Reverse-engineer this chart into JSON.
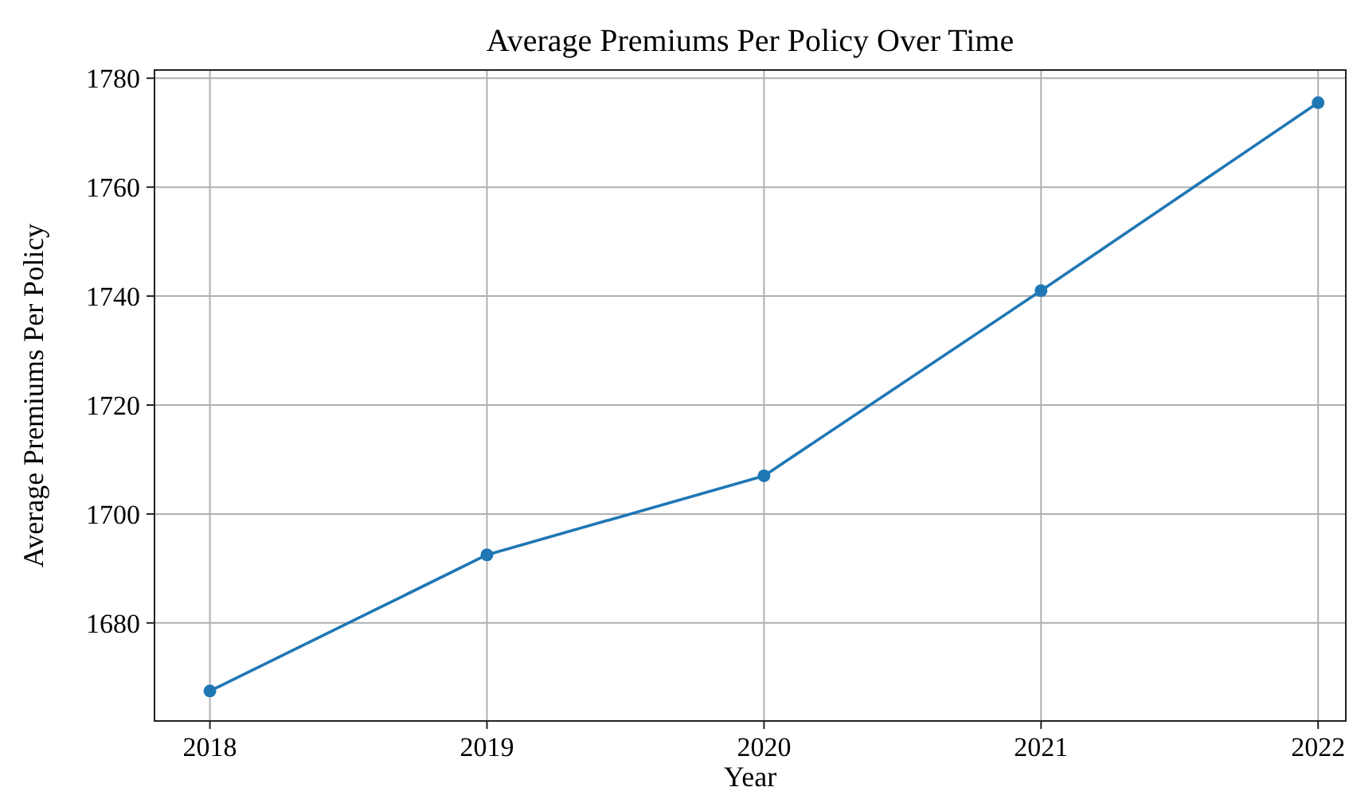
{
  "chart_data": {
    "type": "line",
    "title": "Average Premiums Per Policy Over Time",
    "xlabel": "Year",
    "ylabel": "Average Premiums Per Policy",
    "x": [
      2018,
      2019,
      2020,
      2021,
      2022
    ],
    "series": [
      {
        "color": "#1f77b4",
        "values": [
          1667.5,
          1692.5,
          1707,
          1741,
          1775.5
        ]
      }
    ],
    "xlim": [
      2017.8,
      2022.1
    ],
    "xticks": [
      2018,
      2019,
      2020,
      2021,
      2022
    ],
    "ylim": [
      1662,
      1781.5
    ],
    "yticks": [
      1680,
      1700,
      1720,
      1740,
      1760,
      1780
    ],
    "grid": true,
    "marker": "circle",
    "line_style": "solid"
  }
}
